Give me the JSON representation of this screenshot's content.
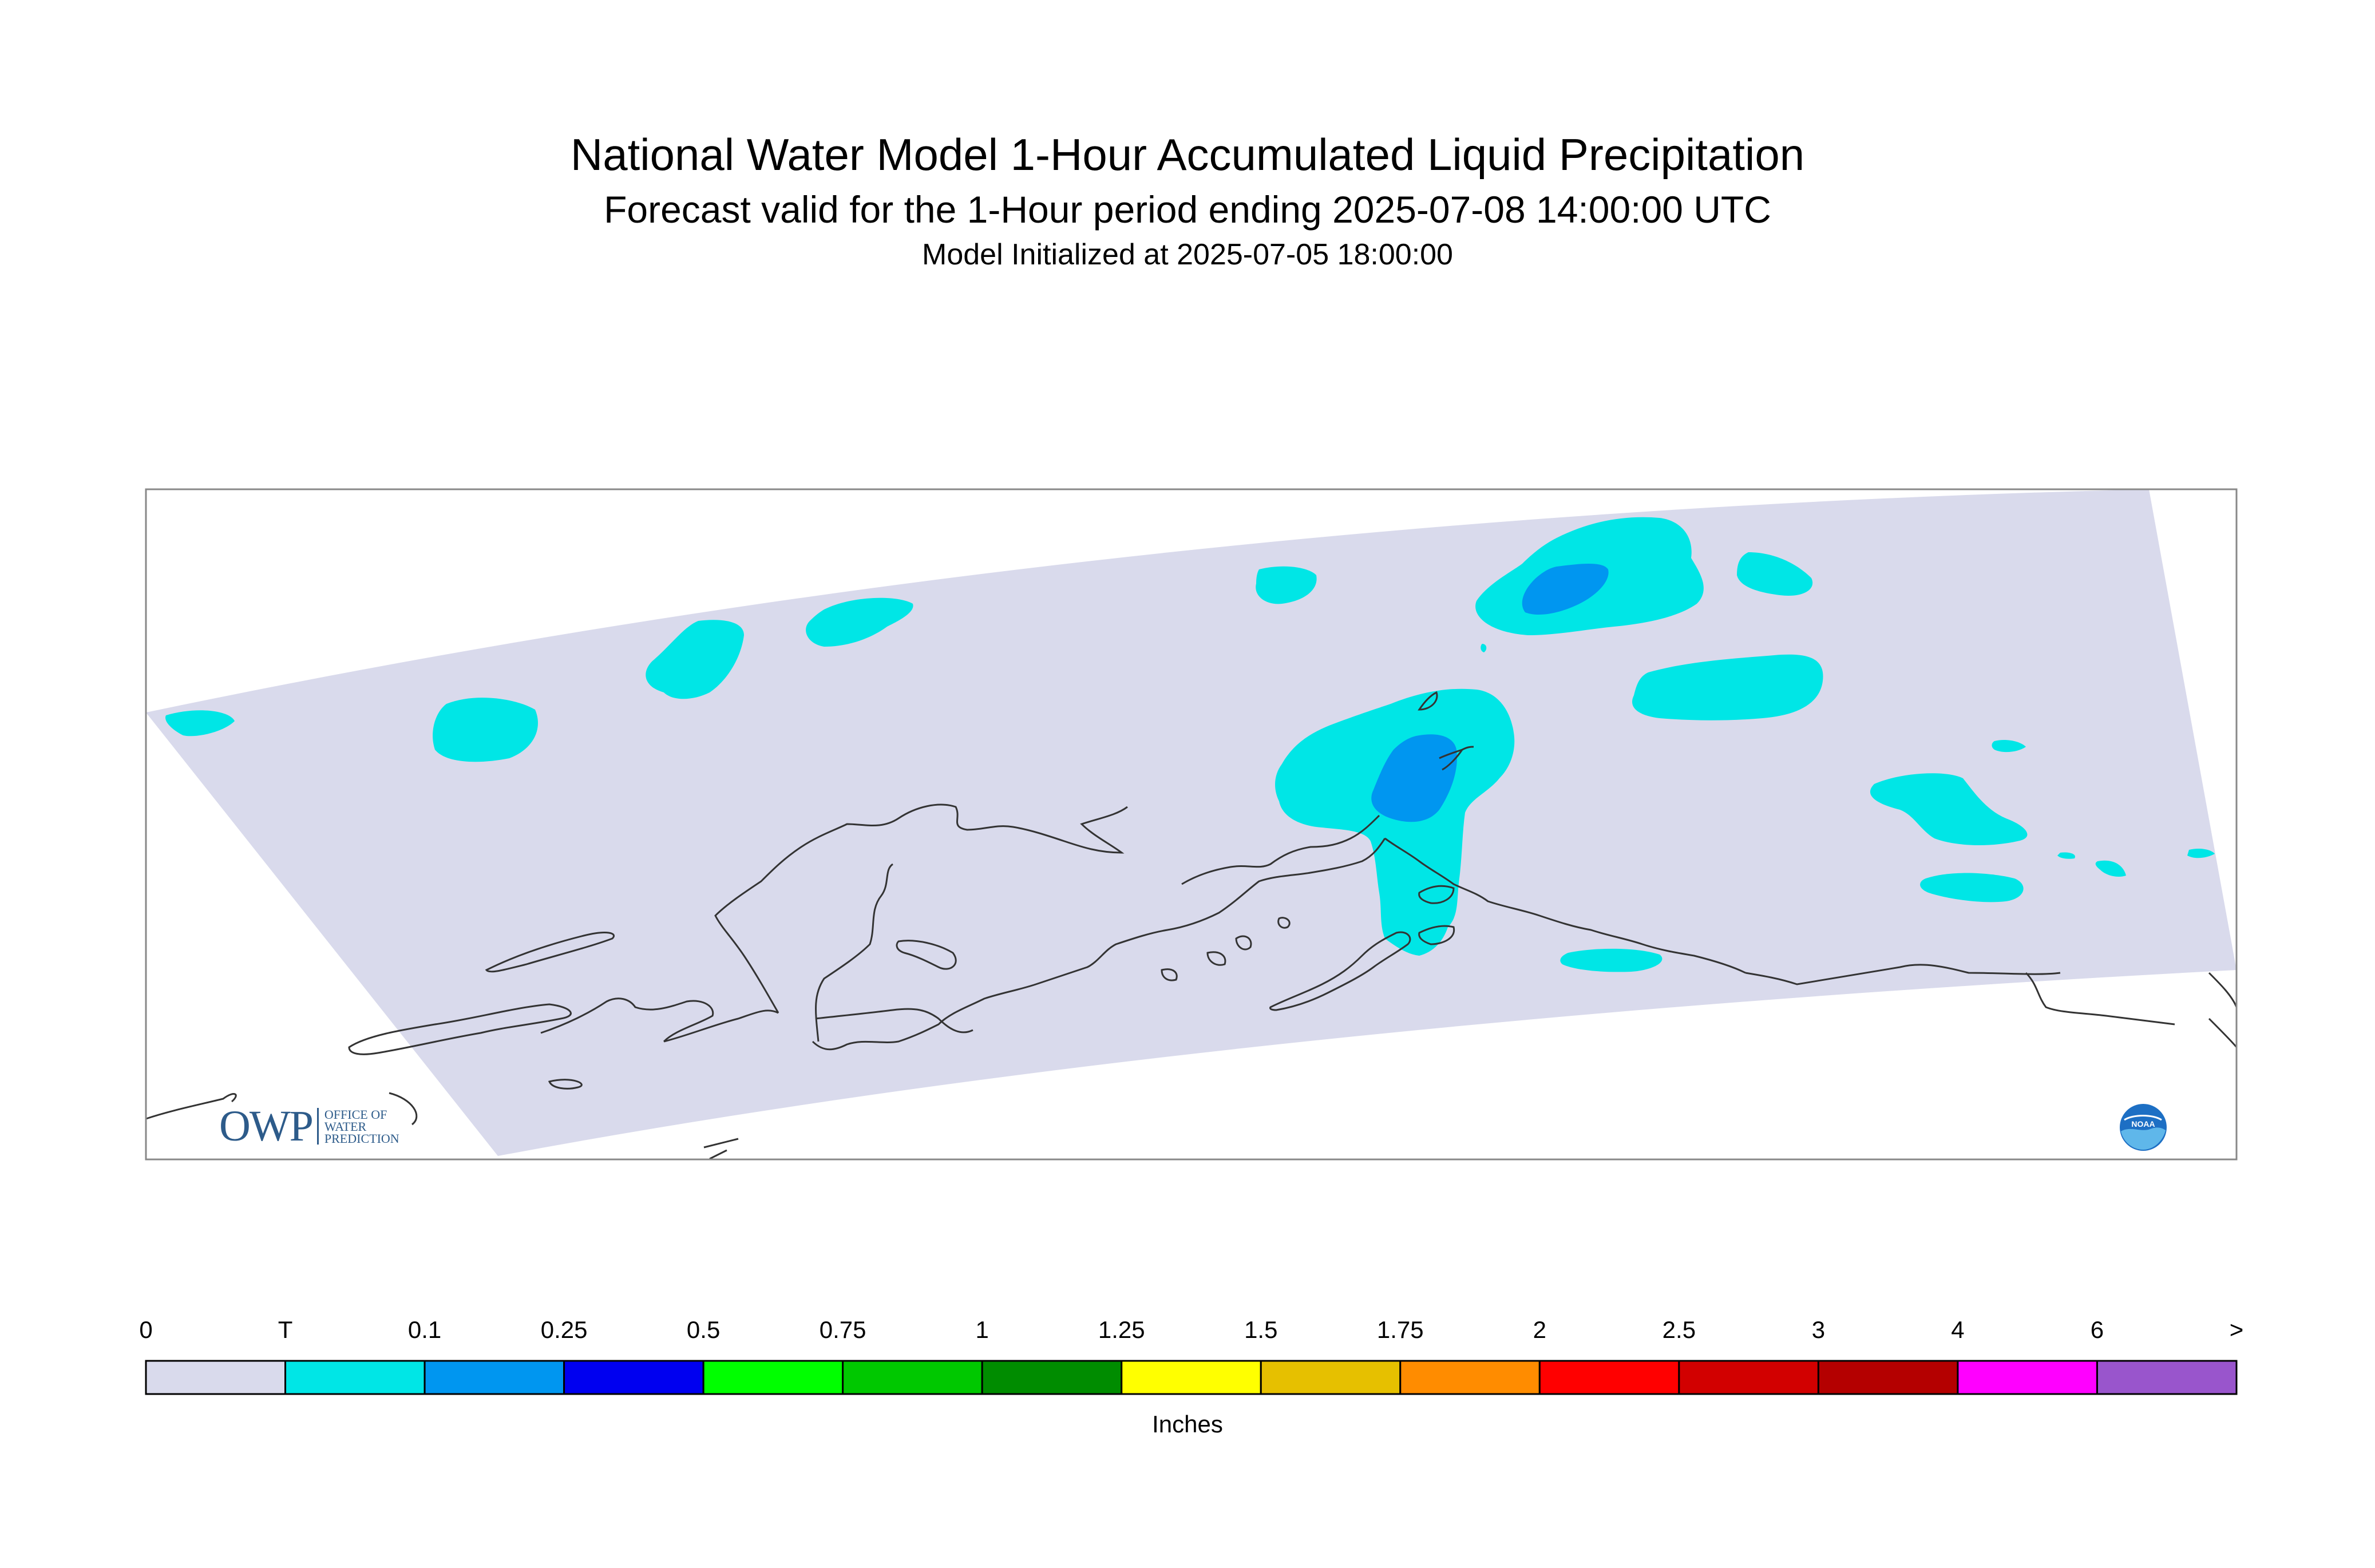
{
  "title": {
    "line1": "National Water Model 1-Hour Accumulated Liquid Precipitation",
    "line2": "Forecast valid for the 1-Hour period ending 2025-07-08 14:00:00 UTC",
    "line3": "Model Initialized at 2025-07-05 18:00:00"
  },
  "map": {
    "domain_fill_color": "#d9daec",
    "precip_color_trace": "#00e6e6",
    "precip_color_0_1": "#0096f0",
    "coastline_color": "#333333",
    "frame_color": "#888888"
  },
  "legend": {
    "units": "Inches",
    "labels": [
      "0",
      "T",
      "0.1",
      "0.25",
      "0.5",
      "0.75",
      "1",
      "1.25",
      "1.5",
      "1.75",
      "2",
      "2.5",
      "3",
      "4",
      "6",
      ">"
    ],
    "colors": [
      "#d9daec",
      "#00e6e6",
      "#0096f0",
      "#0000f0",
      "#00ff00",
      "#00c800",
      "#008c00",
      "#ffff00",
      "#e6c000",
      "#ff8c00",
      "#ff0000",
      "#d20000",
      "#b40000",
      "#ff00ff",
      "#9955cc"
    ]
  },
  "logos": {
    "owp_big": "OWP",
    "owp_small": [
      "OFFICE OF",
      "WATER",
      "PREDICTION"
    ],
    "noaa": "NOAA"
  }
}
